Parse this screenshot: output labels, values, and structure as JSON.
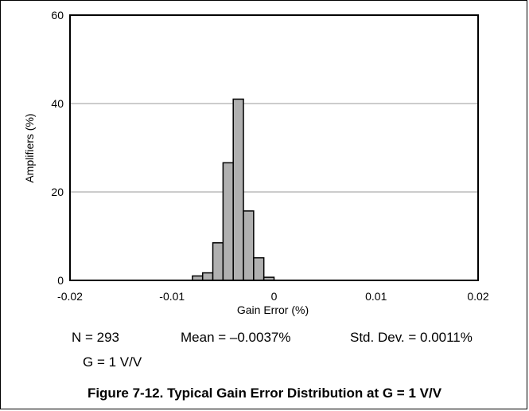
{
  "chart_data": {
    "type": "bar",
    "xlabel": "Gain Error (%)",
    "ylabel": "Amplifiers (%)",
    "xlim": [
      -0.02,
      0.02
    ],
    "ylim": [
      0,
      60
    ],
    "xticks": [
      "-0.02",
      "-0.01",
      "0",
      "0.01",
      "0.02"
    ],
    "yticks": [
      "0",
      "20",
      "40",
      "60"
    ],
    "grid": "horizontal",
    "bin_width": 0.001,
    "bin_starts": [
      -0.008,
      -0.007,
      -0.006,
      -0.005,
      -0.004,
      -0.003,
      -0.002,
      -0.001,
      0.0
    ],
    "values": [
      1.0,
      1.7,
      8.5,
      26.6,
      41.0,
      15.7,
      5.1,
      0.7,
      0.0
    ],
    "bar_color": "#b0b0b0"
  },
  "annotations": {
    "n": "N = 293",
    "mean": "Mean = –0.0037%",
    "std": "Std. Dev. = 0.0011%",
    "gain": "G = 1 V/V"
  },
  "caption": "Figure 7-12. Typical Gain Error Distribution at G = 1 V/V"
}
